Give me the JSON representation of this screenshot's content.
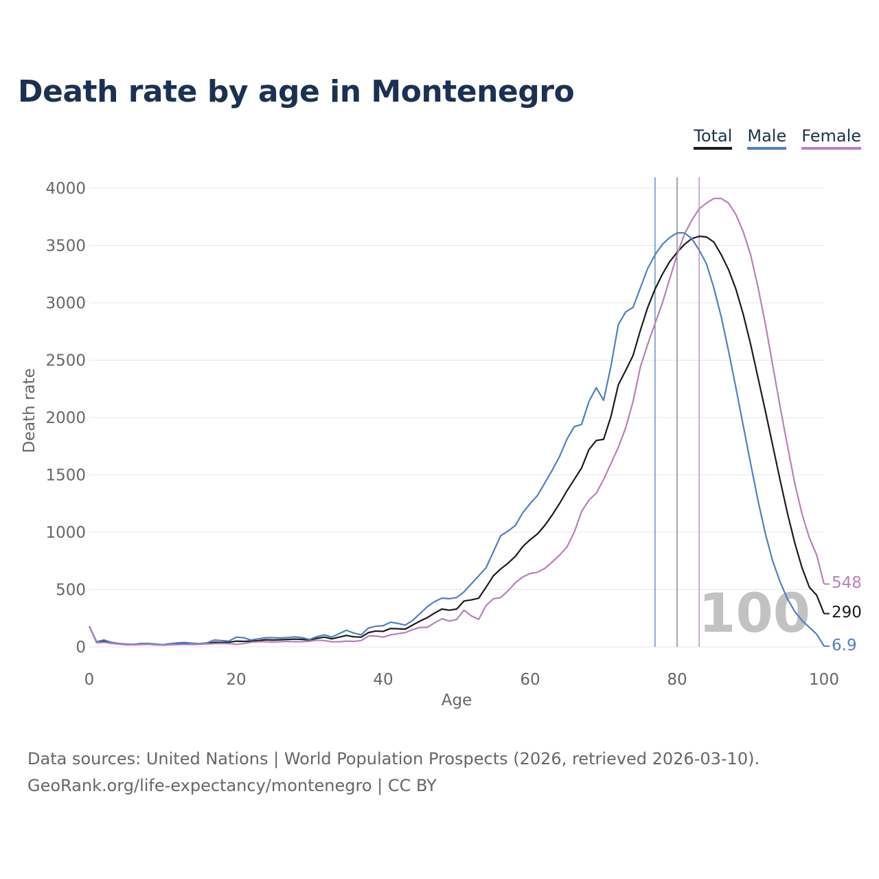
{
  "title": "Death rate by age in Montenegro",
  "legend": [
    {
      "label": "Total",
      "color": "#1a1a1a"
    },
    {
      "label": "Male",
      "color": "#4f7fc3"
    },
    {
      "label": "Female",
      "color": "#b87fba"
    }
  ],
  "source": {
    "line1": "Data sources: United Nations | World Population Prospects (2026, retrieved 2026-03-10).",
    "line2": "GeoRank.org/life-expectancy/montenegro | CC BY"
  },
  "chart_data": {
    "type": "line",
    "title": "Death rate by age in Montenegro",
    "xlabel": "Age",
    "ylabel": "Death rate",
    "xlim": [
      0,
      100
    ],
    "ylim": [
      0,
      4000
    ],
    "xticks": [
      0,
      20,
      40,
      60,
      80,
      100
    ],
    "yticks": [
      0,
      500,
      1000,
      1500,
      2000,
      2500,
      3000,
      3500,
      4000
    ],
    "grid": true,
    "legend_position": "top-right",
    "year_label": "100",
    "x": [
      0,
      1,
      2,
      3,
      4,
      5,
      6,
      7,
      8,
      9,
      10,
      11,
      12,
      13,
      14,
      15,
      16,
      17,
      18,
      19,
      20,
      21,
      22,
      23,
      24,
      25,
      26,
      27,
      28,
      29,
      30,
      31,
      32,
      33,
      34,
      35,
      36,
      37,
      38,
      39,
      40,
      41,
      42,
      43,
      44,
      45,
      46,
      47,
      48,
      49,
      50,
      51,
      52,
      53,
      54,
      55,
      56,
      57,
      58,
      59,
      60,
      61,
      62,
      63,
      64,
      65,
      66,
      67,
      68,
      69,
      70,
      71,
      72,
      73,
      74,
      75,
      76,
      77,
      78,
      79,
      80,
      81,
      82,
      83,
      84,
      85,
      86,
      87,
      88,
      89,
      90,
      91,
      92,
      93,
      94,
      95,
      96,
      97,
      98,
      99,
      100
    ],
    "series": [
      {
        "name": "Total",
        "color": "#1a1a1a",
        "end_label": "290",
        "values": [
          180,
          40,
          50,
          35,
          25,
          20,
          20,
          25,
          25,
          20,
          18,
          22,
          28,
          30,
          27,
          25,
          28,
          40,
          38,
          40,
          50,
          48,
          50,
          55,
          62,
          60,
          62,
          65,
          68,
          65,
          60,
          75,
          85,
          70,
          85,
          100,
          88,
          85,
          125,
          138,
          135,
          160,
          158,
          155,
          190,
          225,
          255,
          295,
          330,
          320,
          330,
          400,
          410,
          425,
          520,
          620,
          680,
          730,
          790,
          875,
          935,
          985,
          1060,
          1150,
          1250,
          1360,
          1460,
          1560,
          1720,
          1800,
          1810,
          2010,
          2285,
          2410,
          2540,
          2760,
          2960,
          3120,
          3250,
          3360,
          3440,
          3510,
          3560,
          3580,
          3575,
          3530,
          3420,
          3290,
          3120,
          2900,
          2640,
          2350,
          2060,
          1760,
          1460,
          1170,
          910,
          690,
          520,
          450,
          290
        ]
      },
      {
        "name": "Male",
        "color": "#4f7fc3",
        "end_label": "6.9",
        "values": [
          180,
          45,
          60,
          40,
          30,
          25,
          22,
          30,
          30,
          25,
          20,
          28,
          35,
          38,
          32,
          28,
          35,
          60,
          55,
          50,
          85,
          80,
          60,
          70,
          80,
          80,
          78,
          82,
          88,
          80,
          65,
          90,
          105,
          85,
          115,
          145,
          120,
          105,
          165,
          180,
          185,
          215,
          205,
          190,
          230,
          290,
          350,
          395,
          425,
          420,
          430,
          480,
          550,
          620,
          690,
          830,
          970,
          1010,
          1060,
          1170,
          1250,
          1320,
          1430,
          1540,
          1660,
          1810,
          1920,
          1940,
          2140,
          2260,
          2150,
          2450,
          2810,
          2920,
          2960,
          3130,
          3300,
          3420,
          3510,
          3570,
          3610,
          3610,
          3560,
          3460,
          3340,
          3130,
          2880,
          2580,
          2260,
          1930,
          1600,
          1280,
          990,
          750,
          570,
          420,
          310,
          230,
          170,
          110,
          6.9
        ]
      },
      {
        "name": "Female",
        "color": "#b87fba",
        "end_label": "548",
        "values": [
          180,
          35,
          40,
          30,
          25,
          18,
          18,
          20,
          22,
          18,
          15,
          18,
          20,
          22,
          20,
          22,
          25,
          28,
          30,
          28,
          22,
          28,
          40,
          45,
          45,
          42,
          45,
          48,
          45,
          45,
          50,
          58,
          55,
          45,
          45,
          50,
          48,
          55,
          95,
          95,
          85,
          105,
          115,
          125,
          150,
          170,
          170,
          210,
          245,
          225,
          240,
          320,
          270,
          240,
          360,
          420,
          430,
          490,
          560,
          610,
          640,
          650,
          685,
          740,
          800,
          870,
          1000,
          1180,
          1280,
          1340,
          1460,
          1600,
          1740,
          1910,
          2140,
          2440,
          2640,
          2820,
          3000,
          3210,
          3420,
          3600,
          3720,
          3820,
          3870,
          3910,
          3910,
          3870,
          3770,
          3620,
          3420,
          3140,
          2820,
          2460,
          2100,
          1760,
          1430,
          1160,
          950,
          800,
          548
        ]
      }
    ],
    "vlines": [
      {
        "series": "Male",
        "x": 77
      },
      {
        "series": "Total",
        "x": 80
      },
      {
        "series": "Female",
        "x": 83
      }
    ]
  }
}
